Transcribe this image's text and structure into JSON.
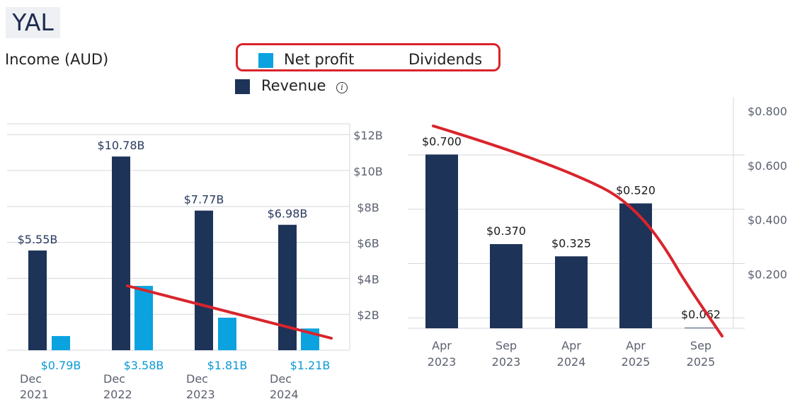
{
  "header": {
    "ticker": "YAL",
    "section_title": "Income (AUD)"
  },
  "legend": {
    "items": [
      {
        "label": "Net profit",
        "color": "#0aa3e0"
      },
      {
        "label": "Dividends"
      },
      {
        "label": "Revenue",
        "color": "#1e3358"
      }
    ]
  },
  "colors": {
    "revenue": "#1e3358",
    "net_profit": "#0aa3e0",
    "dividends": "#1e3358",
    "annotation": "#d9242c"
  },
  "chart_data": [
    {
      "type": "bar",
      "categories": [
        "Dec\n2021",
        "Dec\n2022",
        "Dec\n2023",
        "Dec\n2024"
      ],
      "series": [
        {
          "name": "Revenue",
          "values": [
            5.55,
            10.78,
            7.77,
            6.98
          ],
          "labels": [
            "$5.55B",
            "$10.78B",
            "$7.77B",
            "$6.98B"
          ]
        },
        {
          "name": "Net profit",
          "values": [
            0.79,
            3.58,
            1.81,
            1.21
          ],
          "labels": [
            "$0.79B",
            "$3.58B",
            "$1.81B",
            "$1.21B"
          ]
        }
      ],
      "yticks": [
        "$2B",
        "$4B",
        "$6B",
        "$8B",
        "$10B",
        "$12B"
      ],
      "ylim": [
        0,
        12.6
      ],
      "grid": true
    },
    {
      "type": "bar",
      "categories": [
        "Apr\n2023",
        "Sep\n2023",
        "Apr\n2024",
        "Apr\n2025",
        "Sep\n2025"
      ],
      "series": [
        {
          "name": "Dividends",
          "values": [
            0.7,
            0.37,
            0.325,
            0.52,
            0.062
          ],
          "labels": [
            "$0.700",
            "$0.370",
            "$0.325",
            "$0.520",
            "$0.062"
          ]
        }
      ],
      "yticks": [
        "$0.200",
        "$0.400",
        "$0.600",
        "$0.800"
      ],
      "ylim": [
        0,
        0.8
      ],
      "grid": true
    }
  ]
}
